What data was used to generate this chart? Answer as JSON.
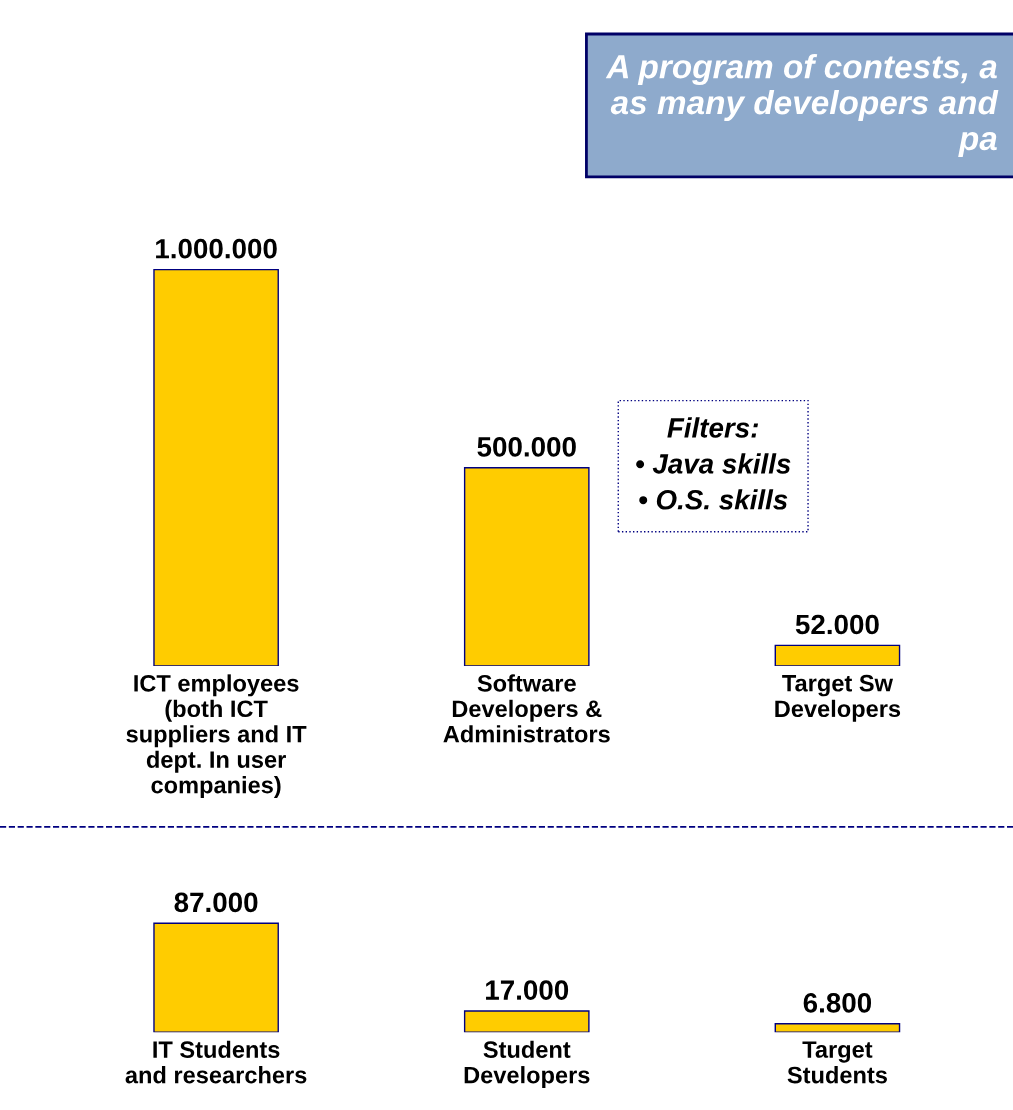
{
  "chart_data": [
    {
      "type": "bar",
      "title": "A program of contests, a\nas many developers and\npa",
      "categories": [
        "ICT employees\n(both ICT\nsuppliers and IT\ndept. In user\ncompanies)",
        "Software\nDevelopers &\nAdministrators",
        "Target Sw\nDevelopers"
      ],
      "values": [
        1000000,
        500000,
        52000
      ],
      "color": "#ffcc00",
      "value_labels": [
        "1.000.000",
        "500.000",
        "52.000"
      ],
      "annotations": [
        "Filters:",
        "• Java skills",
        "• O.S. skills"
      ]
    },
    {
      "type": "bar",
      "categories": [
        "IT Students\nand researchers",
        "Student\nDevelopers",
        "Target\nStudents"
      ],
      "values": [
        87000,
        17000,
        6800
      ],
      "color": "#ffcc00",
      "value_labels": [
        "87.000",
        "17.000",
        "6.800"
      ]
    }
  ]
}
